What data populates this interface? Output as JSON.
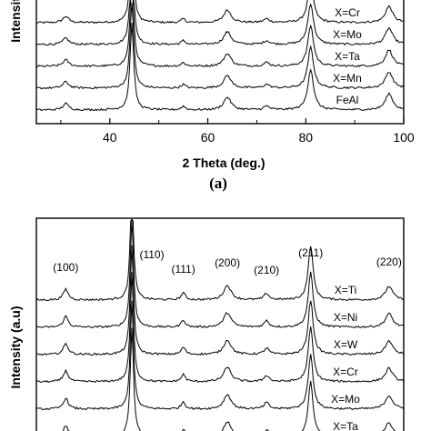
{
  "chart_data": [
    {
      "panel": "(a)",
      "type": "line",
      "xlabel": "2 Theta (deg.)",
      "ylabel": "Intensity",
      "xlim": [
        25,
        100
      ],
      "x_ticks": [
        40,
        60,
        80,
        100
      ],
      "series": [
        {
          "name": "X=Cr"
        },
        {
          "name": "X=Mo"
        },
        {
          "name": "X=Ta"
        },
        {
          "name": "X=Mn"
        },
        {
          "name": "FeAl"
        }
      ],
      "peaks_2theta": [
        31,
        44.5,
        55,
        64,
        72,
        81,
        97
      ]
    },
    {
      "panel": "(b)",
      "type": "line",
      "xlabel": "",
      "ylabel": "Intensity (a.u)",
      "xlim": [
        25,
        100
      ],
      "series": [
        {
          "name": "X=Ti"
        },
        {
          "name": "X=Ni"
        },
        {
          "name": "X=W"
        },
        {
          "name": "X=Cr"
        },
        {
          "name": "X=Mo"
        },
        {
          "name": "X=Ta"
        }
      ],
      "peak_labels": [
        {
          "label": "(100)",
          "two_theta": 31
        },
        {
          "label": "(110)",
          "two_theta": 44.5
        },
        {
          "label": "(111)",
          "two_theta": 55
        },
        {
          "label": "(200)",
          "two_theta": 64
        },
        {
          "label": "(210)",
          "two_theta": 72
        },
        {
          "label": "(211)",
          "two_theta": 81
        },
        {
          "label": "(220)",
          "two_theta": 97
        }
      ],
      "peaks_2theta": [
        31,
        44.5,
        55,
        64,
        72,
        81,
        97
      ]
    }
  ]
}
